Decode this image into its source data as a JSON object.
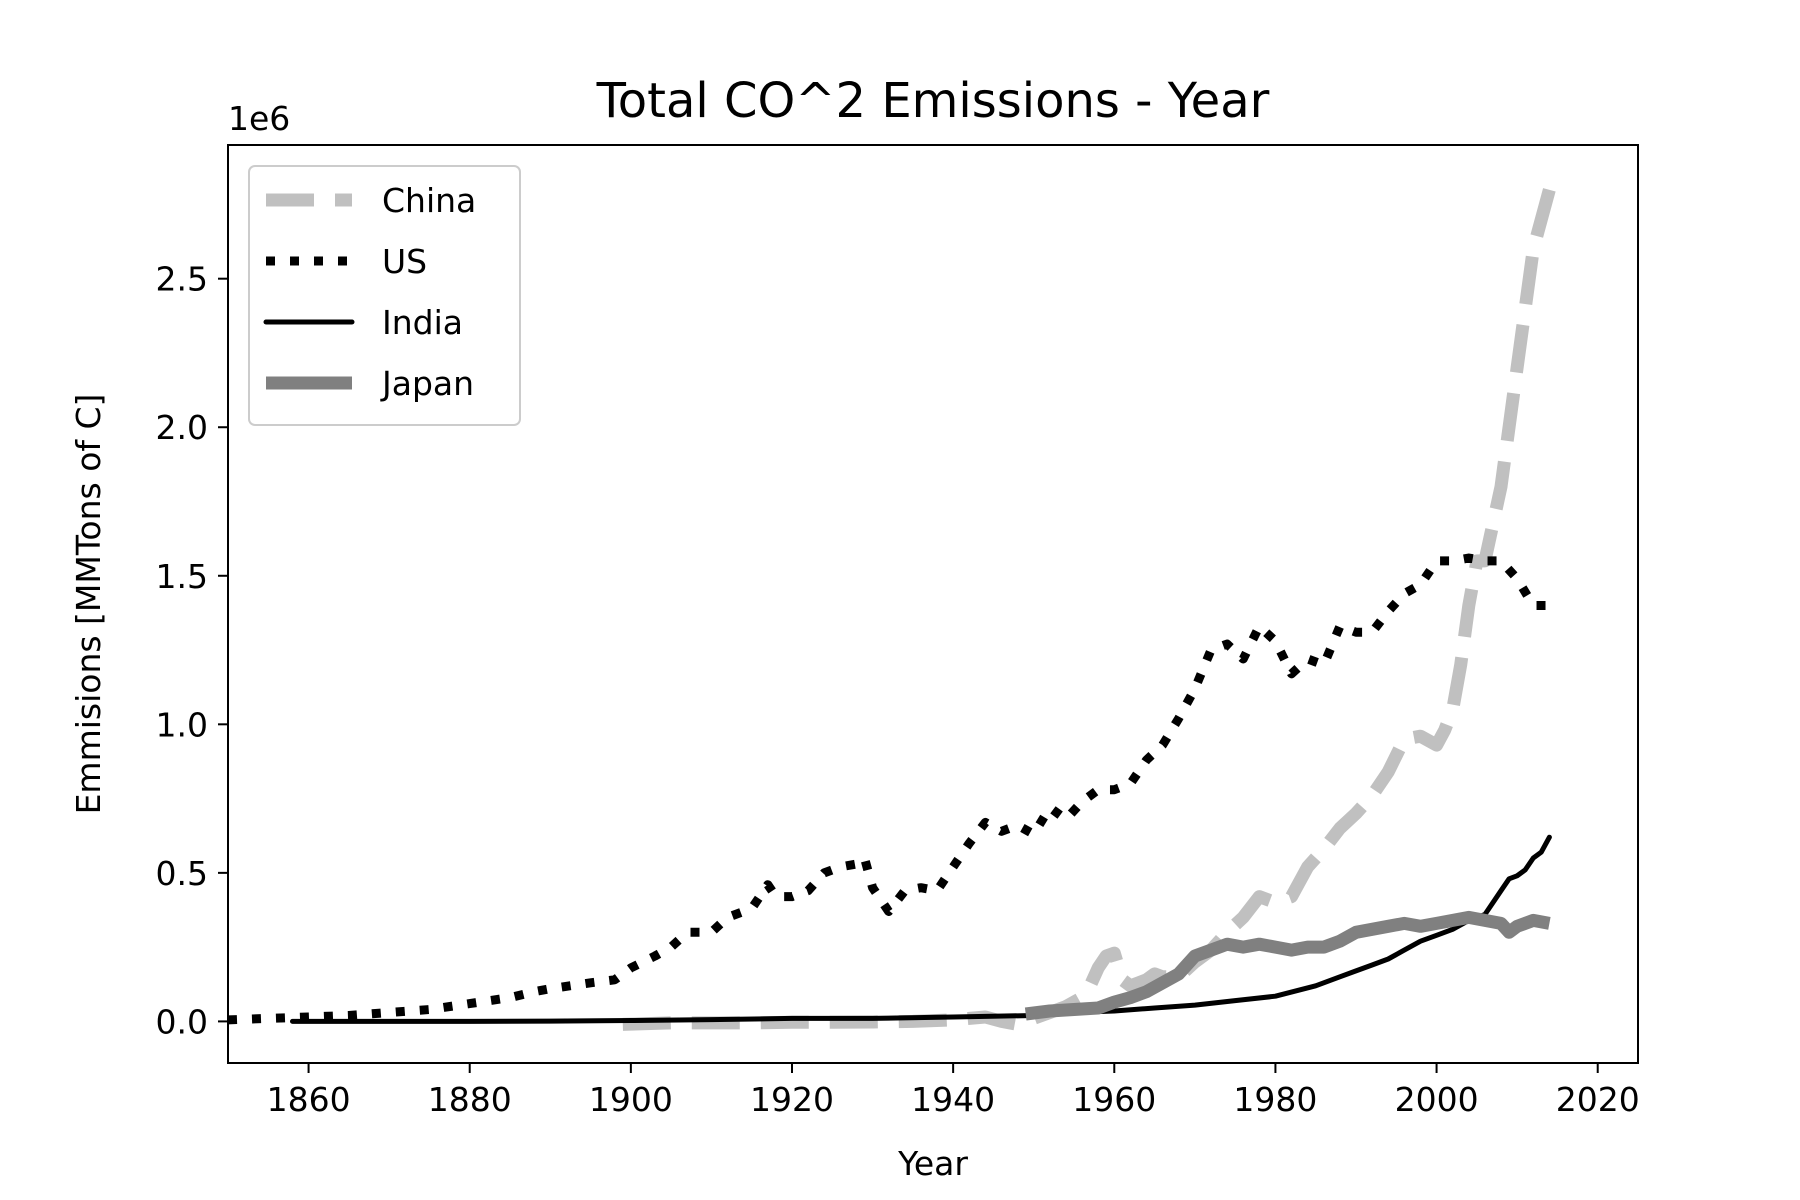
{
  "chart_data": {
    "type": "line",
    "title": "Total CO^2 Emissions - Year",
    "xlabel": "Year",
    "ylabel": "Emmisions [MMTons of C]",
    "y_offset_label": "1e6",
    "xlim": [
      1850,
      2025
    ],
    "ylim": [
      -0.14,
      2.95
    ],
    "y_unit_scale": 1000000,
    "xticks": [
      1860,
      1880,
      1900,
      1920,
      1940,
      1960,
      1980,
      2000,
      2020
    ],
    "xtick_labels": [
      "1860",
      "1880",
      "1900",
      "1920",
      "1940",
      "1960",
      "1980",
      "2000",
      "2020"
    ],
    "yticks": [
      0.0,
      0.5,
      1.0,
      1.5,
      2.0,
      2.5
    ],
    "ytick_labels": [
      "0.0",
      "0.5",
      "1.0",
      "1.5",
      "2.0",
      "2.5"
    ],
    "grid": false,
    "legend_position": "upper-left",
    "series": [
      {
        "name": "China",
        "color": "#c0c0c0",
        "style": "dashed",
        "x": [
          1899,
          1905,
          1910,
          1915,
          1920,
          1925,
          1930,
          1935,
          1940,
          1942,
          1944,
          1946,
          1948,
          1950,
          1952,
          1954,
          1956,
          1957,
          1958,
          1959,
          1960,
          1961,
          1962,
          1963,
          1964,
          1965,
          1966,
          1968,
          1970,
          1972,
          1974,
          1976,
          1978,
          1980,
          1982,
          1984,
          1986,
          1988,
          1990,
          1992,
          1994,
          1996,
          1998,
          2000,
          2001,
          2002,
          2003,
          2004,
          2005,
          2006,
          2008,
          2010,
          2012,
          2014
        ],
        "y": [
          -0.01,
          -0.005,
          -0.005,
          -0.005,
          -0.003,
          -0.003,
          -0.002,
          0.0,
          0.005,
          0.01,
          0.015,
          0.0,
          -0.01,
          0.01,
          0.03,
          0.05,
          0.08,
          0.12,
          0.18,
          0.22,
          0.23,
          0.14,
          0.12,
          0.13,
          0.14,
          0.16,
          0.15,
          0.15,
          0.2,
          0.24,
          0.3,
          0.35,
          0.42,
          0.4,
          0.42,
          0.52,
          0.58,
          0.65,
          0.7,
          0.76,
          0.84,
          0.95,
          0.96,
          0.93,
          0.98,
          1.05,
          1.2,
          1.4,
          1.55,
          1.55,
          1.8,
          2.2,
          2.6,
          2.8
        ]
      },
      {
        "name": "US",
        "color": "#000000",
        "style": "dotted",
        "x": [
          1850,
          1855,
          1860,
          1865,
          1870,
          1875,
          1880,
          1885,
          1888,
          1890,
          1895,
          1898,
          1900,
          1903,
          1905,
          1907,
          1910,
          1912,
          1915,
          1917,
          1918,
          1920,
          1922,
          1924,
          1926,
          1928,
          1929,
          1930,
          1932,
          1934,
          1936,
          1938,
          1940,
          1942,
          1944,
          1946,
          1948,
          1950,
          1952,
          1954,
          1956,
          1958,
          1960,
          1962,
          1964,
          1966,
          1968,
          1970,
          1972,
          1974,
          1976,
          1978,
          1980,
          1982,
          1984,
          1986,
          1988,
          1990,
          1992,
          1994,
          1996,
          1998,
          2000,
          2002,
          2004,
          2006,
          2008,
          2010,
          2012,
          2014
        ],
        "y": [
          0.005,
          0.01,
          0.015,
          0.02,
          0.03,
          0.04,
          0.06,
          0.08,
          0.1,
          0.11,
          0.13,
          0.14,
          0.18,
          0.22,
          0.25,
          0.3,
          0.3,
          0.35,
          0.38,
          0.46,
          0.42,
          0.42,
          0.44,
          0.5,
          0.52,
          0.53,
          0.55,
          0.45,
          0.37,
          0.44,
          0.45,
          0.44,
          0.52,
          0.6,
          0.67,
          0.64,
          0.66,
          0.63,
          0.72,
          0.68,
          0.74,
          0.78,
          0.78,
          0.8,
          0.88,
          0.93,
          1.02,
          1.12,
          1.25,
          1.27,
          1.22,
          1.33,
          1.28,
          1.17,
          1.22,
          1.2,
          1.33,
          1.31,
          1.31,
          1.38,
          1.44,
          1.47,
          1.55,
          1.55,
          1.56,
          1.55,
          1.55,
          1.49,
          1.4,
          1.4
        ]
      },
      {
        "name": "India",
        "color": "#000000",
        "style": "solid",
        "x": [
          1858,
          1870,
          1880,
          1890,
          1900,
          1910,
          1920,
          1930,
          1940,
          1950,
          1955,
          1960,
          1965,
          1970,
          1975,
          1980,
          1985,
          1988,
          1990,
          1992,
          1994,
          1996,
          1998,
          2000,
          2002,
          2004,
          2006,
          2008,
          2009,
          2010,
          2011,
          2012,
          2013,
          2014
        ],
        "y": [
          0.0,
          0.0,
          0.0,
          0.001,
          0.003,
          0.006,
          0.01,
          0.01,
          0.015,
          0.02,
          0.03,
          0.035,
          0.045,
          0.055,
          0.07,
          0.085,
          0.12,
          0.15,
          0.17,
          0.19,
          0.21,
          0.24,
          0.27,
          0.29,
          0.31,
          0.34,
          0.36,
          0.44,
          0.48,
          0.49,
          0.51,
          0.55,
          0.57,
          0.62
        ]
      },
      {
        "name": "Japan",
        "color": "#808080",
        "style": "solid-thick",
        "x": [
          1949,
          1952,
          1955,
          1958,
          1960,
          1962,
          1964,
          1966,
          1968,
          1970,
          1972,
          1974,
          1976,
          1978,
          1980,
          1982,
          1984,
          1986,
          1988,
          1990,
          1992,
          1994,
          1996,
          1998,
          2000,
          2002,
          2004,
          2006,
          2008,
          2009,
          2010,
          2012,
          2014
        ],
        "y": [
          0.025,
          0.035,
          0.04,
          0.045,
          0.065,
          0.08,
          0.1,
          0.13,
          0.16,
          0.22,
          0.24,
          0.26,
          0.25,
          0.26,
          0.25,
          0.24,
          0.25,
          0.25,
          0.27,
          0.3,
          0.31,
          0.32,
          0.33,
          0.32,
          0.33,
          0.34,
          0.35,
          0.34,
          0.33,
          0.3,
          0.32,
          0.34,
          0.33
        ]
      }
    ]
  }
}
